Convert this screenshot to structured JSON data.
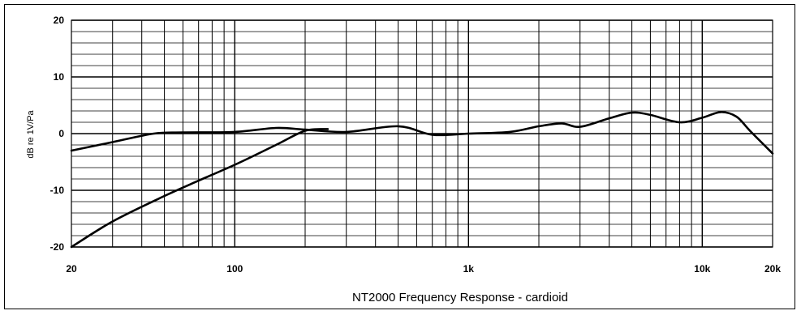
{
  "chart_data": {
    "type": "line",
    "title": "",
    "xlabel": "NT2000 Frequency Response - cardioid",
    "ylabel": "dB re 1V/Pa",
    "x_scale": "log",
    "xlim": [
      20,
      20000
    ],
    "ylim": [
      -20,
      20
    ],
    "x_ticks": [
      {
        "value": 20,
        "label": "20"
      },
      {
        "value": 100,
        "label": "100"
      },
      {
        "value": 1000,
        "label": "1k"
      },
      {
        "value": 10000,
        "label": "10k"
      },
      {
        "value": 20000,
        "label": "20k"
      }
    ],
    "y_ticks": [
      {
        "value": 20,
        "label": "20"
      },
      {
        "value": 10,
        "label": "10"
      },
      {
        "value": 0,
        "label": "0"
      },
      {
        "value": -10,
        "label": "-10"
      },
      {
        "value": -20,
        "label": "-20"
      }
    ],
    "grid": true,
    "line_color": "#000000",
    "series": [
      {
        "x": [
          20,
          30,
          45,
          60,
          100,
          150,
          200,
          300,
          500,
          700,
          1000,
          1500,
          2000,
          2500,
          3000,
          4000,
          5000,
          6000,
          8000,
          10000,
          12000,
          14000,
          16000,
          20000
        ],
        "y": [
          -3,
          -1.5,
          0,
          0.2,
          0.3,
          1,
          0.7,
          0.3,
          1.3,
          -0.2,
          0,
          0.3,
          1.3,
          1.8,
          1.2,
          2.7,
          3.7,
          3.3,
          2,
          2.8,
          3.8,
          3,
          0.5,
          -3.5
        ]
      },
      {
        "x": [
          20,
          30,
          50,
          70,
          100,
          150,
          200,
          250
        ],
        "y": [
          -20,
          -15.5,
          -11,
          -8.3,
          -5.5,
          -2,
          0.5,
          0.8
        ]
      }
    ]
  }
}
